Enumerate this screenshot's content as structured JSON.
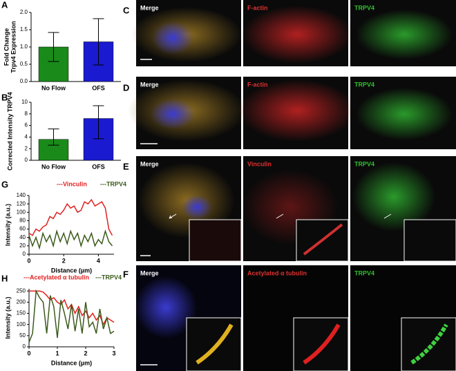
{
  "chart_data": [
    {
      "type": "bar",
      "panel": "A",
      "y_label": [
        "Fold Change",
        "Trpv4 Expression"
      ],
      "categories": [
        "No Flow",
        "OFS"
      ],
      "values": [
        1.0,
        1.15
      ],
      "errors": [
        0.42,
        0.67
      ],
      "colors": [
        "#1a8a1a",
        "#1a1ad0"
      ],
      "ylim": [
        0,
        2
      ],
      "yticks": [
        {
          "value": 0,
          "label": "0.0"
        },
        0.5,
        {
          "value": 1,
          "label": "1.0"
        },
        1.5,
        {
          "value": 2,
          "label": "2.0"
        }
      ]
    },
    {
      "type": "bar",
      "panel": "B",
      "y_label": [
        "Corrected Intensity TRPV4"
      ],
      "categories": [
        "No Flow",
        "OFS"
      ],
      "values": [
        3.6,
        7.2
      ],
      "errors_low": [
        1.0,
        3.5
      ],
      "errors_high": [
        1.8,
        2.2
      ],
      "colors": [
        "#1a8a1a",
        "#1a1ad0"
      ],
      "ylim": [
        0,
        10
      ],
      "yticks": [
        0,
        2,
        4,
        6,
        8,
        10
      ]
    },
    {
      "type": "line",
      "panel": "G",
      "x_label": "Distance (µm)",
      "y_label": "Intensity (a.u.)",
      "x": [
        0,
        0.2,
        0.4,
        0.6,
        0.8,
        1.0,
        1.2,
        1.4,
        1.6,
        1.8,
        2.0,
        2.2,
        2.4,
        2.6,
        2.8,
        3.0,
        3.2,
        3.4,
        3.6,
        3.8,
        4.0,
        4.2,
        4.4,
        4.6,
        4.8
      ],
      "series": [
        {
          "name": "---Vinculin",
          "color": "#e02020",
          "values": [
            50,
            45,
            60,
            55,
            65,
            70,
            90,
            85,
            100,
            95,
            105,
            120,
            110,
            115,
            100,
            105,
            125,
            120,
            130,
            115,
            120,
            125,
            110,
            60,
            45
          ]
        },
        {
          "name": "---TRPV4",
          "color": "#3a5a1a",
          "values": [
            45,
            20,
            40,
            15,
            50,
            30,
            45,
            20,
            55,
            30,
            50,
            25,
            55,
            35,
            50,
            20,
            45,
            30,
            50,
            20,
            35,
            25,
            55,
            30,
            20
          ]
        }
      ],
      "xlim": [
        0,
        4.9
      ],
      "xticks": [
        0,
        2,
        4
      ],
      "ylim": [
        0,
        140
      ],
      "yticks": [
        0,
        20,
        40,
        60,
        80,
        100,
        120,
        140
      ]
    },
    {
      "type": "line",
      "panel": "H",
      "x_label": "Distance (µm)",
      "y_label": "Intensity (a.u.)",
      "x": [
        0,
        0.125,
        0.25,
        0.375,
        0.5,
        0.625,
        0.75,
        0.875,
        1.0,
        1.125,
        1.25,
        1.375,
        1.5,
        1.625,
        1.75,
        1.875,
        2.0,
        2.125,
        2.25,
        2.375,
        2.5,
        2.625,
        2.75,
        2.875,
        3.0
      ],
      "series": [
        {
          "name": "---Acetylated α tubulin",
          "color": "#e02020",
          "values": [
            250,
            250,
            250,
            250,
            245,
            230,
            210,
            220,
            200,
            190,
            210,
            170,
            190,
            150,
            180,
            140,
            160,
            130,
            150,
            120,
            140,
            100,
            130,
            120,
            110
          ]
        },
        {
          "name": "---TRPV4",
          "color": "#3a5a1a",
          "values": [
            20,
            60,
            250,
            220,
            200,
            60,
            230,
            180,
            40,
            210,
            150,
            80,
            190,
            70,
            170,
            60,
            200,
            90,
            110,
            60,
            170,
            80,
            130,
            60,
            70
          ]
        }
      ],
      "xlim": [
        0,
        3
      ],
      "xticks": [
        0,
        1,
        2,
        3
      ],
      "ylim": [
        0,
        260
      ],
      "yticks": [
        0,
        50,
        100,
        150,
        200,
        250
      ]
    }
  ],
  "images": {
    "C": {
      "panel": "C",
      "labels": [
        "Merge",
        "F-actin",
        "TRPV4"
      ]
    },
    "D": {
      "panel": "D",
      "labels": [
        "Merge",
        "F-actin",
        "TRPV4"
      ]
    },
    "E": {
      "panel": "E",
      "labels": [
        "Merge",
        "Vinculin",
        "TRPV4"
      ]
    },
    "F": {
      "panel": "F",
      "labels": [
        "Merge",
        "Acetylated α tubulin",
        "TRPV4"
      ]
    }
  }
}
